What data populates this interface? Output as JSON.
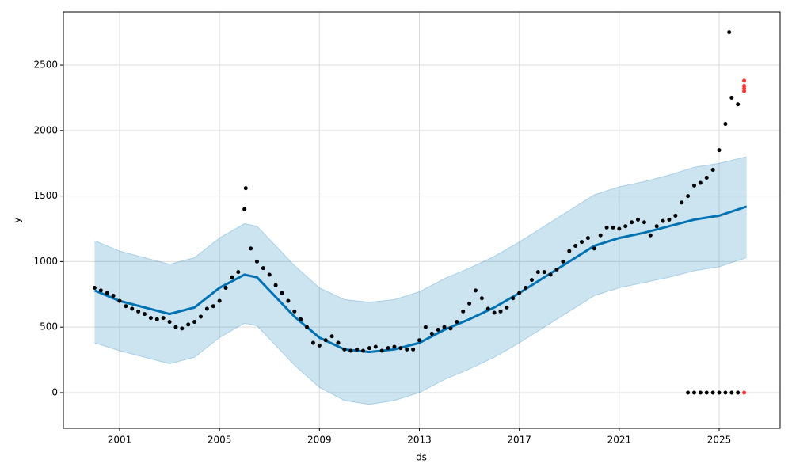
{
  "chart_data": {
    "type": "forecast",
    "xlabel": "ds",
    "ylabel": "y",
    "xlim": [
      1998.75,
      2027.44
    ],
    "ylim": [
      -272,
      2905
    ],
    "xticks": [
      2001,
      2005,
      2009,
      2013,
      2017,
      2021,
      2025
    ],
    "yticks": [
      0,
      500,
      1000,
      1500,
      2000,
      2500
    ],
    "grid": true,
    "series": [
      {
        "kind": "band",
        "color": "#0072b2",
        "x": [
          2000,
          2001,
          2002,
          2003,
          2004,
          2005,
          2006,
          2006.5,
          2007,
          2008,
          2009,
          2010,
          2011,
          2012,
          2013,
          2014,
          2015,
          2016,
          2017,
          2018,
          2019,
          2020,
          2021,
          2022,
          2023,
          2024,
          2025,
          2026.1
        ],
        "lower": [
          380,
          320,
          270,
          220,
          270,
          420,
          530,
          510,
          410,
          210,
          40,
          -60,
          -90,
          -60,
          0,
          100,
          180,
          270,
          380,
          500,
          620,
          740,
          800,
          840,
          880,
          930,
          960,
          1030
        ],
        "upper": [
          1160,
          1080,
          1030,
          980,
          1030,
          1180,
          1290,
          1270,
          1170,
          970,
          800,
          710,
          690,
          710,
          770,
          870,
          950,
          1040,
          1150,
          1270,
          1390,
          1510,
          1570,
          1610,
          1660,
          1720,
          1750,
          1800
        ]
      },
      {
        "kind": "line",
        "color": "#0072b2",
        "x": [
          2000,
          2001,
          2002,
          2003,
          2004,
          2005,
          2006,
          2006.5,
          2007,
          2008,
          2009,
          2010,
          2011,
          2012,
          2013,
          2014,
          2015,
          2016,
          2017,
          2018,
          2019,
          2020,
          2021,
          2022,
          2023,
          2024,
          2025,
          2026.1
        ],
        "values": [
          780,
          700,
          650,
          600,
          650,
          800,
          900,
          880,
          780,
          580,
          420,
          330,
          310,
          330,
          380,
          480,
          560,
          650,
          760,
          880,
          1000,
          1120,
          1180,
          1220,
          1270,
          1320,
          1350,
          1420
        ]
      },
      {
        "kind": "points",
        "color": "#000000",
        "x": [
          2000,
          2000.25,
          2000.5,
          2000.75,
          2001,
          2001.25,
          2001.5,
          2001.75,
          2002,
          2002.25,
          2002.5,
          2002.75,
          2003,
          2003.25,
          2003.5,
          2003.75,
          2004,
          2004.25,
          2004.5,
          2004.75,
          2005,
          2005.25,
          2005.5,
          2005.75,
          2006,
          2006.05,
          2006.25,
          2006.5,
          2006.75,
          2007,
          2007.25,
          2007.5,
          2007.75,
          2008,
          2008.25,
          2008.5,
          2008.75,
          2009,
          2009.25,
          2009.5,
          2009.75,
          2010,
          2010.25,
          2010.5,
          2010.75,
          2011,
          2011.25,
          2011.5,
          2011.75,
          2012,
          2012.25,
          2012.5,
          2012.75,
          2013,
          2013.25,
          2013.5,
          2013.75,
          2014,
          2014.25,
          2014.5,
          2014.75,
          2015,
          2015.25,
          2015.5,
          2015.75,
          2016,
          2016.25,
          2016.5,
          2016.75,
          2017,
          2017.25,
          2017.5,
          2017.75,
          2018,
          2018.25,
          2018.5,
          2018.75,
          2019,
          2019.25,
          2019.5,
          2019.75,
          2020,
          2020.25,
          2020.5,
          2020.75,
          2021,
          2021.25,
          2021.5,
          2021.75,
          2022,
          2022.25,
          2022.5,
          2022.75,
          2023,
          2023.25,
          2023.5,
          2023.75,
          2024,
          2024.25,
          2024.5,
          2024.75,
          2025,
          2025.25,
          2025.4,
          2025.5,
          2025.75,
          2023.75,
          2024,
          2024.25,
          2024.5,
          2024.75,
          2025,
          2025.25,
          2025.5,
          2025.75
        ],
        "values": [
          800,
          780,
          760,
          740,
          700,
          660,
          640,
          620,
          600,
          570,
          560,
          570,
          540,
          500,
          490,
          520,
          540,
          580,
          640,
          660,
          700,
          800,
          880,
          920,
          1400,
          1560,
          1100,
          1000,
          950,
          900,
          820,
          760,
          700,
          620,
          560,
          500,
          380,
          360,
          400,
          430,
          380,
          330,
          320,
          330,
          320,
          340,
          350,
          320,
          340,
          350,
          340,
          330,
          330,
          400,
          500,
          450,
          480,
          500,
          490,
          540,
          620,
          680,
          780,
          720,
          640,
          610,
          620,
          650,
          720,
          760,
          800,
          860,
          920,
          920,
          900,
          940,
          1000,
          1080,
          1120,
          1150,
          1180,
          1100,
          1200,
          1260,
          1260,
          1250,
          1270,
          1300,
          1320,
          1300,
          1200,
          1270,
          1310,
          1320,
          1350,
          1450,
          1500,
          1580,
          1600,
          1640,
          1700,
          1850,
          2050,
          2750,
          2250,
          2200,
          0,
          0,
          0,
          0,
          0,
          0,
          0,
          0,
          0
        ]
      },
      {
        "kind": "points",
        "color": "#ff3333",
        "x": [
          2026,
          2026,
          2026,
          2026,
          2026
        ],
        "values": [
          2300,
          2340,
          2380,
          2320,
          0
        ]
      }
    ]
  }
}
